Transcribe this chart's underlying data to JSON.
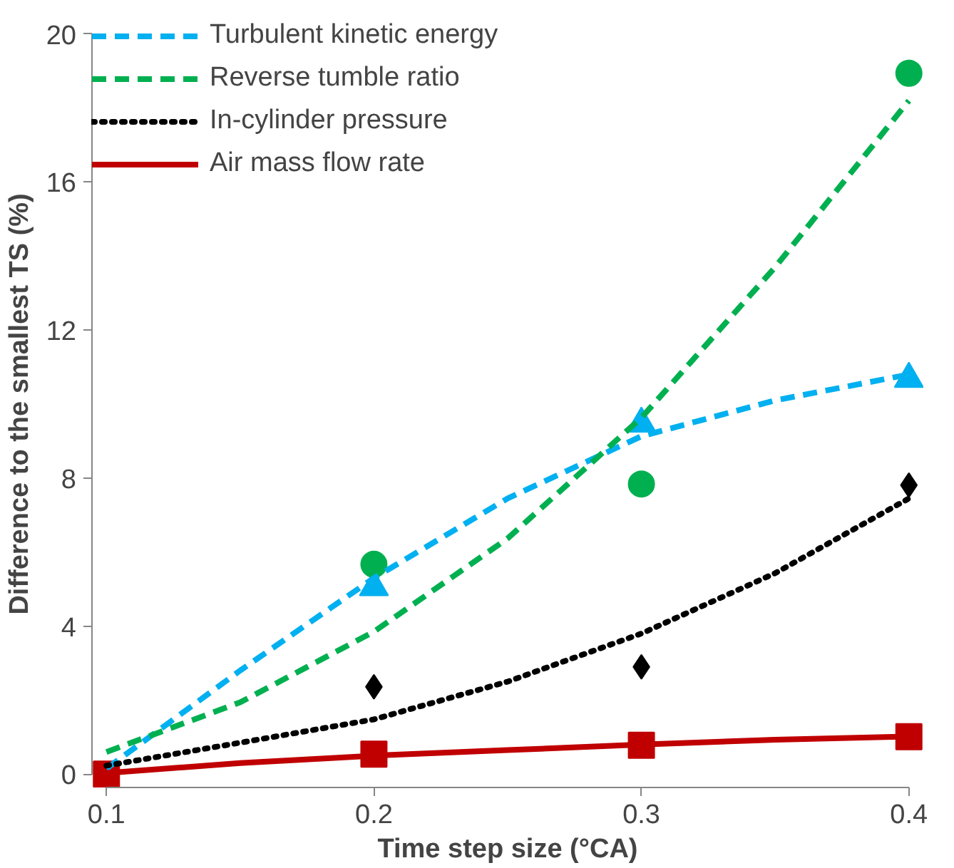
{
  "chart_data": {
    "type": "scatter",
    "xlabel": "Time step size (°CA)",
    "ylabel": "Difference to the smallest TS (%)",
    "xlim": [
      0.1,
      0.4
    ],
    "xticks": [
      0.1,
      0.2,
      0.3,
      0.4
    ],
    "ylim": [
      0,
      20
    ],
    "yticks": [
      0,
      4,
      8,
      12,
      16,
      20
    ],
    "grid": false,
    "legend": "top left",
    "series": [
      {
        "marker": "triangle",
        "color": "#00b0f0",
        "x": [
          0.2,
          0.3,
          0.4
        ],
        "values": [
          5.05,
          9.47,
          10.68
        ]
      },
      {
        "marker": "circle",
        "color": "#00b050",
        "x": [
          0.2,
          0.3,
          0.4
        ],
        "values": [
          5.67,
          7.84,
          18.94
        ]
      },
      {
        "marker": "diamond",
        "color": "#000000",
        "x": [
          0.2,
          0.3,
          0.4
        ],
        "values": [
          2.36,
          2.9,
          7.81
        ]
      },
      {
        "marker": "square",
        "color": "#c00000",
        "x": [
          0.1,
          0.2,
          0.3,
          0.4
        ],
        "values": [
          0,
          0.54,
          0.78,
          1.01
        ]
      },
      {
        "type": "line",
        "name": "Turbulent kinetic energy",
        "line_style": "dashed",
        "color": "#00b0f0",
        "x": [
          0.1,
          0.15,
          0.2,
          0.25,
          0.3,
          0.35,
          0.4
        ],
        "values": [
          0.15,
          2.8,
          5.3,
          7.45,
          9.13,
          10.1,
          10.8
        ]
      },
      {
        "type": "line",
        "name": "Reverse tumble ratio",
        "line_style": "dashed",
        "color": "#00b050",
        "x": [
          0.1,
          0.15,
          0.2,
          0.25,
          0.3,
          0.35,
          0.4
        ],
        "values": [
          0.6,
          1.94,
          3.85,
          6.37,
          9.63,
          13.7,
          18.2
        ]
      },
      {
        "type": "line",
        "name": "In-cylinder pressure",
        "line_style": "dotted",
        "color": "#000000",
        "x": [
          0.1,
          0.15,
          0.2,
          0.25,
          0.3,
          0.35,
          0.4
        ],
        "values": [
          0.23,
          0.85,
          1.48,
          2.5,
          3.8,
          5.43,
          7.45
        ]
      },
      {
        "type": "line",
        "name": "Air mass flow rate",
        "line_style": "solid",
        "color": "#c00000",
        "x": [
          0.1,
          0.15,
          0.2,
          0.25,
          0.3,
          0.35,
          0.4
        ],
        "values": [
          0.03,
          0.3,
          0.5,
          0.65,
          0.8,
          0.93,
          1.02
        ]
      }
    ]
  }
}
